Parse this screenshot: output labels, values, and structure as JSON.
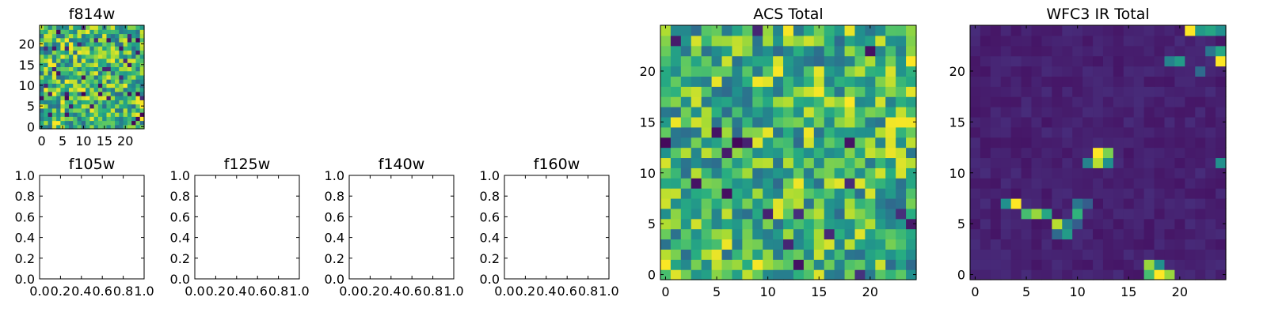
{
  "chart_data": [
    {
      "id": "f814w",
      "type": "heatmap",
      "title": "f814w",
      "shape": [
        25,
        25
      ],
      "colormap": "viridis",
      "origin": "lower",
      "xticks": [
        0,
        5,
        10,
        15,
        20
      ],
      "yticks": [
        0,
        5,
        10,
        15,
        20
      ],
      "xlim": [
        -0.5,
        24.5
      ],
      "ylim": [
        -0.5,
        24.5
      ],
      "value_pattern": "noise",
      "seed": 814
    },
    {
      "id": "f105w",
      "type": "empty",
      "title": "f105w",
      "xticks": [
        "0.0",
        "0.2",
        "0.4",
        "0.6",
        "0.8",
        "1.0"
      ],
      "yticks": [
        "0.0",
        "0.2",
        "0.4",
        "0.6",
        "0.8",
        "1.0"
      ],
      "xlim": [
        0,
        1
      ],
      "ylim": [
        0,
        1
      ]
    },
    {
      "id": "f125w",
      "type": "empty",
      "title": "f125w",
      "xticks": [
        "0.0",
        "0.2",
        "0.4",
        "0.6",
        "0.8",
        "1.0"
      ],
      "yticks": [
        "0.0",
        "0.2",
        "0.4",
        "0.6",
        "0.8",
        "1.0"
      ],
      "xlim": [
        0,
        1
      ],
      "ylim": [
        0,
        1
      ]
    },
    {
      "id": "f140w",
      "type": "empty",
      "title": "f140w",
      "xticks": [
        "0.0",
        "0.2",
        "0.4",
        "0.6",
        "0.8",
        "1.0"
      ],
      "yticks": [
        "0.0",
        "0.2",
        "0.4",
        "0.6",
        "0.8",
        "1.0"
      ],
      "xlim": [
        0,
        1
      ],
      "ylim": [
        0,
        1
      ]
    },
    {
      "id": "f160w",
      "type": "empty",
      "title": "f160w",
      "xticks": [
        "0.0",
        "0.2",
        "0.4",
        "0.6",
        "0.8",
        "1.0"
      ],
      "yticks": [
        "0.0",
        "0.2",
        "0.4",
        "0.6",
        "0.8",
        "1.0"
      ],
      "xlim": [
        0,
        1
      ],
      "ylim": [
        0,
        1
      ]
    },
    {
      "id": "acs",
      "type": "heatmap",
      "title": "ACS Total",
      "shape": [
        25,
        25
      ],
      "colormap": "viridis",
      "origin": "lower",
      "xticks": [
        0,
        5,
        10,
        15,
        20
      ],
      "yticks": [
        0,
        5,
        10,
        15,
        20
      ],
      "xlim": [
        -0.5,
        24.5
      ],
      "ylim": [
        -0.5,
        24.5
      ],
      "value_pattern": "noise",
      "seed": 4242
    },
    {
      "id": "wfc3",
      "type": "heatmap",
      "title": "WFC3 IR Total",
      "shape": [
        25,
        25
      ],
      "colormap": "viridis",
      "origin": "lower",
      "xticks": [
        0,
        5,
        10,
        15,
        20
      ],
      "yticks": [
        0,
        5,
        10,
        15,
        20
      ],
      "xlim": [
        -0.5,
        24.5
      ],
      "ylim": [
        -0.5,
        24.5
      ],
      "value_pattern": "sparse",
      "background_level": 0.06,
      "seed": 1603,
      "bright_pixels": [
        [
          17,
          0,
          0.7
        ],
        [
          18,
          0,
          1.0
        ],
        [
          19,
          0,
          0.85
        ],
        [
          17,
          1,
          0.85
        ],
        [
          18,
          1,
          0.5
        ],
        [
          4,
          7,
          1.0
        ],
        [
          3,
          7,
          0.5
        ],
        [
          5,
          6,
          0.7
        ],
        [
          6,
          6,
          0.85
        ],
        [
          7,
          6,
          0.6
        ],
        [
          8,
          5,
          0.9
        ],
        [
          9,
          5,
          0.45
        ],
        [
          10,
          6,
          0.65
        ],
        [
          9,
          4,
          0.55
        ],
        [
          8,
          4,
          0.35
        ],
        [
          10,
          7,
          0.4
        ],
        [
          11,
          7,
          0.3
        ],
        [
          10,
          5,
          0.3
        ],
        [
          12,
          12,
          1.0
        ],
        [
          13,
          12,
          0.8
        ],
        [
          12,
          11,
          0.9
        ],
        [
          11,
          11,
          0.45
        ],
        [
          13,
          11,
          0.5
        ],
        [
          21,
          24,
          1.0
        ],
        [
          22,
          24,
          0.55
        ],
        [
          23,
          24,
          0.6
        ],
        [
          24,
          24,
          0.5
        ],
        [
          24,
          21,
          1.0
        ],
        [
          24,
          22,
          0.6
        ],
        [
          23,
          22,
          0.4
        ],
        [
          19,
          21,
          0.45
        ],
        [
          20,
          21,
          0.55
        ],
        [
          22,
          20,
          0.35
        ],
        [
          24,
          11,
          0.5
        ]
      ]
    }
  ]
}
